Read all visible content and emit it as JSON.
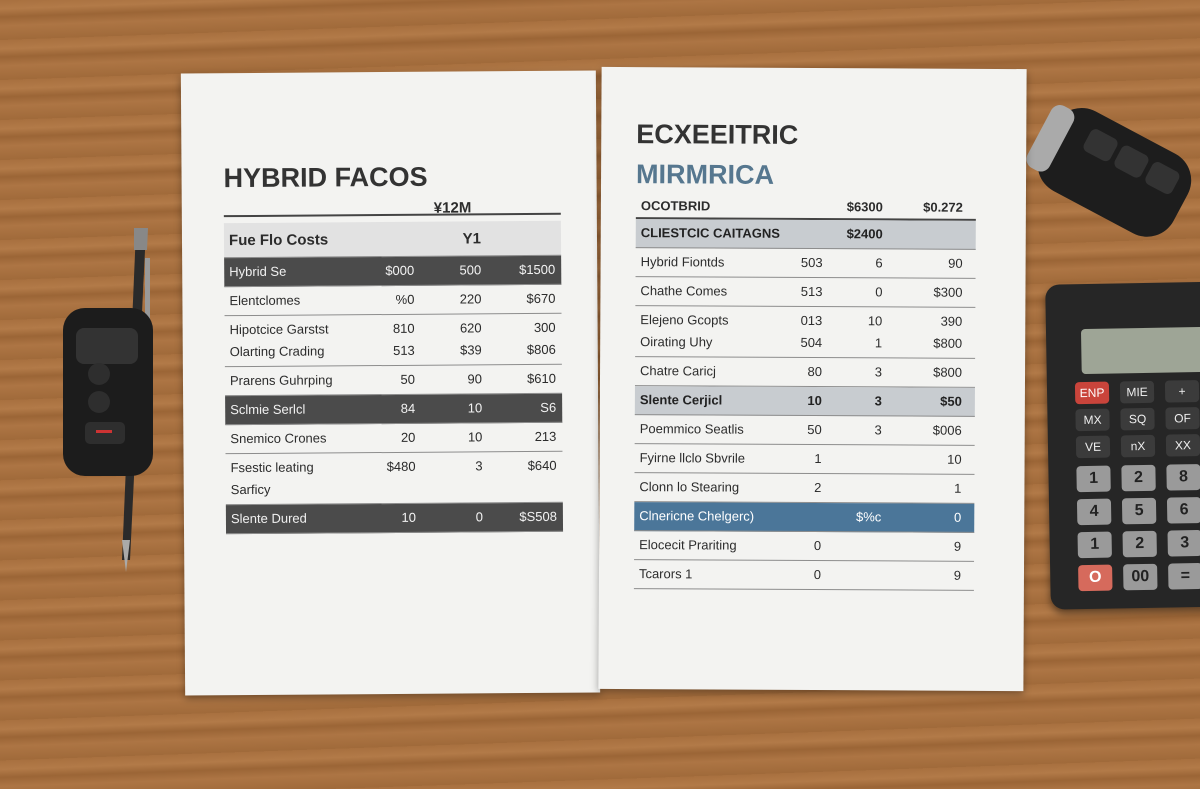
{
  "left_sheet": {
    "title": "HYBRID FACOS",
    "header": "¥12M",
    "subheader": [
      "Fue Flo Costs",
      null,
      "Y1",
      null
    ],
    "rows": [
      {
        "style": "dark",
        "lines": [
          [
            "Hybrid Se",
            "$000",
            "500",
            "$1500"
          ]
        ]
      },
      {
        "style": "plain",
        "lines": [
          [
            "Elentclomes",
            "%0",
            "220",
            "$670"
          ]
        ]
      },
      {
        "style": "plain",
        "lines": [
          [
            "Hipotcice Garstst",
            "810",
            "620",
            "300"
          ],
          [
            "Olarting Crading",
            "513",
            "$39",
            "$806"
          ]
        ]
      },
      {
        "style": "plain",
        "lines": [
          [
            "Prarens Guhrping",
            "50",
            "90",
            "$610"
          ]
        ]
      },
      {
        "style": "dark",
        "lines": [
          [
            "Sclmie Serlcl",
            "84",
            "10",
            "S6"
          ]
        ]
      },
      {
        "style": "plain",
        "lines": [
          [
            "Snemico Crones",
            "20",
            "10",
            "213"
          ]
        ]
      },
      {
        "style": "plain",
        "lines": [
          [
            "Fsestic leating",
            "$480",
            "3",
            "$640"
          ],
          [
            "Sarficy",
            null,
            null,
            null
          ]
        ]
      },
      {
        "style": "dark",
        "lines": [
          [
            "Slente Dured",
            "10",
            "0",
            "$S508"
          ]
        ]
      }
    ]
  },
  "right_sheet": {
    "title": "ECXEEITRIC",
    "subtitle": "MIRMRICA",
    "header": [
      "OCOTBRID",
      null,
      "$6300",
      "$0.272"
    ],
    "rows": [
      {
        "style": "gray",
        "lines": [
          [
            "CLIESTCIC CAITAGNS",
            null,
            "$2400",
            null
          ]
        ]
      },
      {
        "style": "plain",
        "lines": [
          [
            "Hybrid Fiontds",
            "503",
            "6",
            "90"
          ]
        ]
      },
      {
        "style": "plain",
        "lines": [
          [
            "Chathe Comes",
            "513",
            "0",
            "$300"
          ]
        ]
      },
      {
        "style": "plain",
        "lines": [
          [
            "Elejeno Gcopts",
            "013",
            "10",
            "390"
          ],
          [
            "Oirating Uhy",
            "504",
            "1",
            "$800"
          ]
        ]
      },
      {
        "style": "plain",
        "lines": [
          [
            "Chatre Caricj",
            "80",
            "3",
            "$800"
          ]
        ]
      },
      {
        "style": "gray",
        "lines": [
          [
            "Slente Cerjicl",
            "10",
            "3",
            "$50"
          ]
        ]
      },
      {
        "style": "plain",
        "lines": [
          [
            "Poemmico Seatlis",
            "50",
            "3",
            "$006"
          ]
        ]
      },
      {
        "style": "plain",
        "lines": [
          [
            "Fyirne llclo Sbvrile",
            "1",
            null,
            "10"
          ]
        ]
      },
      {
        "style": "plain",
        "lines": [
          [
            "Clonn lo Stearing",
            "2",
            null,
            "1"
          ]
        ]
      },
      {
        "style": "blue",
        "lines": [
          [
            "Clnericne Chelgerc)",
            null,
            "$%c",
            "0"
          ]
        ]
      },
      {
        "style": "plain",
        "lines": [
          [
            "Elocecit Prariting",
            "0",
            null,
            "9"
          ]
        ]
      },
      {
        "style": "plain",
        "lines": [
          [
            "Tcarors 1",
            "0",
            null,
            "9"
          ]
        ]
      }
    ]
  },
  "calculator": {
    "keys": [
      "ENP",
      "MIE",
      "+",
      "MX",
      "SQ",
      "OF",
      "VE",
      "nX",
      "XX",
      "1",
      "2",
      "8",
      "4",
      "5",
      "6",
      "1",
      "2",
      "3",
      "O",
      "00",
      "="
    ]
  }
}
